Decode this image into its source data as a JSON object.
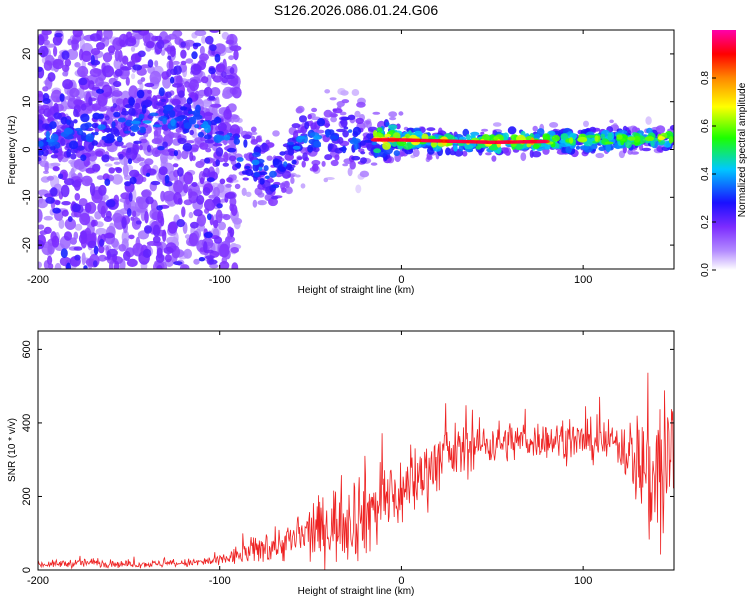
{
  "figure_title": "S126.2026.086.01.24.G06",
  "colors": {
    "snr_line": "#ee2222",
    "axis": "#000000",
    "colormap": [
      "#ffffff",
      "#b38bff",
      "#7c2bff",
      "#1a10ff",
      "#00c8ff",
      "#1cff00",
      "#ffff00",
      "#ff8800",
      "#ff0000",
      "#ff00aa"
    ]
  },
  "chart_data": [
    {
      "type": "heatmap",
      "title": "",
      "xlabel": "Height of straight line (km)",
      "ylabel": "Frequency (Hz)",
      "xlim": [
        -200,
        150
      ],
      "ylim": [
        -25,
        25
      ],
      "xticks": [
        -200,
        -100,
        0,
        100
      ],
      "yticks": [
        -20,
        -10,
        0,
        10,
        20
      ],
      "colorbar": {
        "label": "Normalized spectral amplitude",
        "range": [
          0,
          1
        ],
        "ticks": [
          "0.0",
          "0.2",
          "0.4",
          "0.6",
          "0.8"
        ],
        "tick_values": [
          0.0,
          0.2,
          0.4,
          0.6,
          0.8
        ]
      },
      "ridge": {
        "description_points": [
          {
            "x": -200,
            "freq": 2
          },
          {
            "x": -170,
            "freq": 4
          },
          {
            "x": -115,
            "freq": 7
          },
          {
            "x": -100,
            "freq": 3
          },
          {
            "x": -85,
            "freq": -2
          },
          {
            "x": -70,
            "freq": -5
          },
          {
            "x": -55,
            "freq": 2
          },
          {
            "x": -35,
            "freq": 3
          },
          {
            "x": -20,
            "freq": 2
          },
          {
            "x": 0,
            "freq": 2
          },
          {
            "x": 50,
            "freq": 1.5
          },
          {
            "x": 100,
            "freq": 1.8
          },
          {
            "x": 150,
            "freq": 2.5
          }
        ],
        "peak_amplitude": 0.95,
        "peak_range_km": [
          -15,
          80
        ]
      }
    },
    {
      "type": "line",
      "title": "",
      "xlabel": "Height of straight line (km)",
      "ylabel": "SNR (10 * v/v)",
      "xlim": [
        -200,
        150
      ],
      "ylim": [
        0,
        650
      ],
      "xticks": [
        -200,
        -100,
        0,
        100
      ],
      "yticks": [
        0,
        200,
        400,
        600
      ],
      "series": [
        {
          "name": "SNR",
          "envelope_x": [
            -200,
            -170,
            -150,
            -120,
            -100,
            -80,
            -60,
            -40,
            -20,
            0,
            20,
            40,
            60,
            80,
            100,
            120,
            130,
            140,
            150
          ],
          "envelope_mean": [
            15,
            20,
            15,
            18,
            25,
            55,
            80,
            120,
            160,
            210,
            300,
            340,
            350,
            355,
            350,
            345,
            300,
            250,
            300
          ],
          "envelope_spread": [
            8,
            12,
            8,
            10,
            15,
            35,
            50,
            90,
            120,
            90,
            80,
            60,
            50,
            45,
            50,
            55,
            120,
            250,
            300
          ]
        }
      ]
    }
  ]
}
